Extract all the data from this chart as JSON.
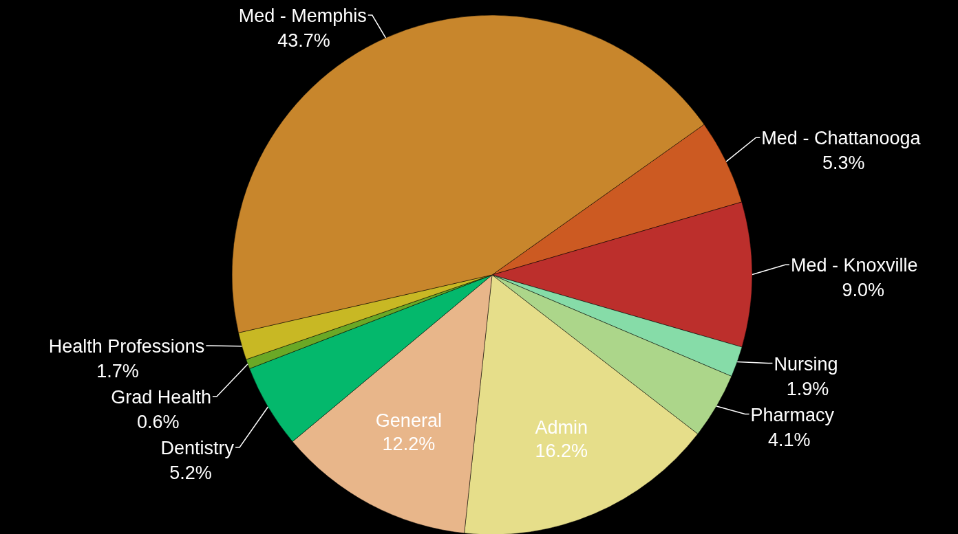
{
  "chart_data": {
    "type": "pie",
    "categories": [
      "Med - Chattanooga",
      "Med - Knoxville",
      "Nursing",
      "Pharmacy",
      "Admin",
      "General",
      "Dentistry",
      "Grad Health",
      "Health Professions",
      "Med - Memphis"
    ],
    "values": [
      5.3,
      9.0,
      1.9,
      4.1,
      16.2,
      12.2,
      5.2,
      0.6,
      1.7,
      43.7
    ],
    "colors": [
      "#cc5a22",
      "#bc2f2c",
      "#86dca8",
      "#acd68a",
      "#e6de8a",
      "#e8b68a",
      "#04b86c",
      "#6aa826",
      "#c8b824",
      "#c8862c"
    ],
    "value_labels": [
      "5.3%",
      "9.0%",
      "1.9%",
      "4.1%",
      "16.2%",
      "12.2%",
      "5.2%",
      "0.6%",
      "1.7%",
      "43.7%"
    ],
    "legend": false
  }
}
